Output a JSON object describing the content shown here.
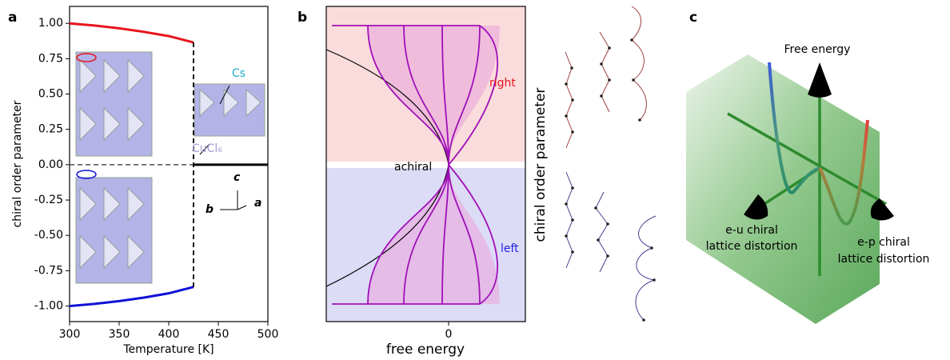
{
  "chart_data": {
    "type": "line",
    "label": "a",
    "xlabel": "Temperature [K]",
    "ylabel": "chiral order parameter",
    "xlim": [
      300,
      500
    ],
    "ylim": [
      -1.11,
      1.12
    ],
    "xticks": [
      300,
      350,
      400,
      450,
      500
    ],
    "yticks": [
      {
        "value": -1,
        "label": "-1.00"
      },
      {
        "value": -0.75,
        "label": "-0.75"
      },
      {
        "value": -0.5,
        "label": "-0.50"
      },
      {
        "value": -0.25,
        "label": "-0.25"
      },
      {
        "value": 0,
        "label": "0.00"
      },
      {
        "value": 0.25,
        "label": "0.25"
      },
      {
        "value": 0.5,
        "label": "0.50"
      },
      {
        "value": 0.75,
        "label": "0.75"
      },
      {
        "value": 1,
        "label": "1.00"
      }
    ],
    "series": [
      {
        "color": "#e8141c",
        "style": "solid",
        "x": [
          300,
          325,
          350,
          375,
          400,
          425
        ],
        "values": [
          1.0,
          0.985,
          0.965,
          0.94,
          0.91,
          0.865
        ]
      },
      {
        "color": "#1010d8",
        "style": "solid",
        "x": [
          300,
          325,
          350,
          375,
          400,
          425
        ],
        "values": [
          -1.0,
          -0.985,
          -0.965,
          -0.94,
          -0.91,
          -0.865
        ]
      },
      {
        "color": "#000000",
        "style": "solid",
        "x": [
          425,
          500
        ],
        "values": [
          0,
          0
        ]
      },
      {
        "color": "#666666",
        "style": "dashed",
        "x": [
          300,
          425
        ],
        "values": [
          0,
          0
        ]
      },
      {
        "color": "#000000",
        "style": "dashed",
        "x": [
          425,
          425
        ],
        "values": [
          0.865,
          -0.865
        ]
      }
    ],
    "annotations": [
      {
        "text": "Cs",
        "color": "#1ab0c8"
      },
      {
        "text": "CuCl₆",
        "color": "#a99bd2"
      },
      {
        "text": "c",
        "color": "#000000"
      },
      {
        "text": "b",
        "color": "#000000"
      },
      {
        "text": "a",
        "color": "#000000"
      }
    ]
  },
  "panel_b": {
    "label": "b",
    "xlabel": "free energy",
    "xticks": [
      "0"
    ],
    "ylabel": "chiral order parameter",
    "right": "right",
    "left": "left",
    "achiral": "achiral"
  },
  "panel_c": {
    "label": "c",
    "axis_energy": "Free energy",
    "eu_line1": "e-u chiral",
    "eu_line2": "lattice distortion",
    "ep_line1": "e-p chiral",
    "ep_line2": "lattice distortion"
  }
}
